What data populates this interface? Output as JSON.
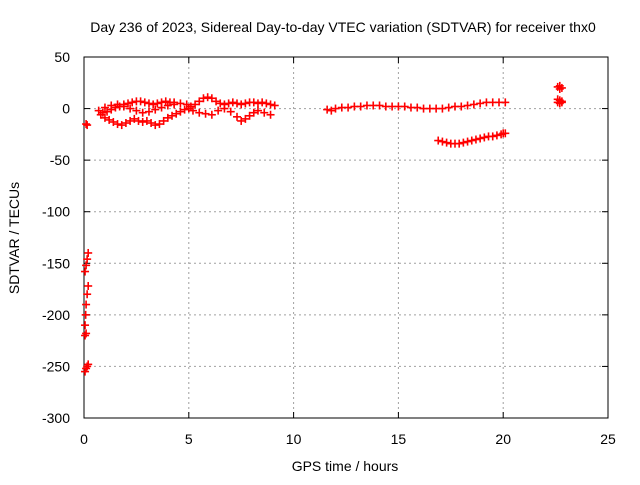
{
  "chart_data": {
    "type": "scatter",
    "title": "Day 236 of 2023, Sidereal Day-to-day VTEC variation (SDTVAR) for receiver thx0",
    "xlabel": "GPS time / hours",
    "ylabel": "SDTVAR / TECUs",
    "xlim": [
      0,
      25
    ],
    "ylim": [
      -300,
      50
    ],
    "xticks": [
      "0",
      "5",
      "10",
      "15",
      "20",
      "25"
    ],
    "yticks": [
      "-300",
      "-250",
      "-200",
      "-150",
      "-100",
      "-50",
      "0",
      "50"
    ],
    "grid": true,
    "marker": "plus",
    "colors": {
      "series": "#ff0000",
      "grid": "#a0a0a0",
      "axis": "#000000"
    },
    "series": [
      {
        "points": [
          [
            0.1,
            -15
          ],
          [
            0.15,
            -16
          ],
          [
            0.05,
            -255
          ],
          [
            0.1,
            -252
          ],
          [
            0.15,
            -250
          ],
          [
            0.2,
            -248
          ],
          [
            0.05,
            -220
          ],
          [
            0.1,
            -218
          ],
          [
            0.05,
            -210
          ],
          [
            0.08,
            -200
          ],
          [
            0.1,
            -190
          ],
          [
            0.15,
            -180
          ],
          [
            0.2,
            -172
          ],
          [
            0.05,
            -158
          ],
          [
            0.1,
            -152
          ],
          [
            0.15,
            -146
          ],
          [
            0.2,
            -140
          ],
          [
            0.7,
            -2
          ],
          [
            0.9,
            -4
          ],
          [
            1.1,
            -3
          ],
          [
            1.3,
            -1
          ],
          [
            1.5,
            1
          ],
          [
            1.7,
            2
          ],
          [
            1.9,
            4
          ],
          [
            2.1,
            5
          ],
          [
            2.3,
            6
          ],
          [
            2.5,
            7
          ],
          [
            2.7,
            7
          ],
          [
            2.9,
            6
          ],
          [
            3.1,
            5
          ],
          [
            3.3,
            4
          ],
          [
            3.5,
            5
          ],
          [
            3.7,
            6
          ],
          [
            3.9,
            7
          ],
          [
            4.1,
            6
          ],
          [
            4.3,
            6
          ],
          [
            0.8,
            -6
          ],
          [
            1.0,
            -9
          ],
          [
            1.2,
            -11
          ],
          [
            1.4,
            -13
          ],
          [
            1.6,
            -15
          ],
          [
            1.8,
            -16
          ],
          [
            2.0,
            -14
          ],
          [
            2.2,
            -12
          ],
          [
            2.4,
            -10
          ],
          [
            2.6,
            -12
          ],
          [
            2.8,
            -13
          ],
          [
            3.0,
            -12
          ],
          [
            3.2,
            -14
          ],
          [
            3.4,
            -16
          ],
          [
            3.6,
            -15
          ],
          [
            3.8,
            -12
          ],
          [
            4.0,
            -9
          ],
          [
            4.2,
            -7
          ],
          [
            4.4,
            -5
          ],
          [
            4.6,
            -3
          ],
          [
            4.8,
            -1
          ],
          [
            5.0,
            0
          ],
          [
            1.0,
            1
          ],
          [
            1.3,
            3
          ],
          [
            1.6,
            4
          ],
          [
            1.9,
            2
          ],
          [
            2.2,
            0
          ],
          [
            2.5,
            -2
          ],
          [
            2.8,
            -4
          ],
          [
            3.1,
            -3
          ],
          [
            3.4,
            -1
          ],
          [
            3.7,
            1
          ],
          [
            4.0,
            3
          ],
          [
            4.3,
            4
          ],
          [
            4.6,
            5
          ],
          [
            4.9,
            4
          ],
          [
            5.1,
            2
          ],
          [
            5.3,
            4
          ],
          [
            5.5,
            7
          ],
          [
            5.7,
            10
          ],
          [
            5.9,
            11
          ],
          [
            6.1,
            10
          ],
          [
            6.3,
            7
          ],
          [
            6.5,
            5
          ],
          [
            6.7,
            4
          ],
          [
            6.9,
            5
          ],
          [
            7.1,
            6
          ],
          [
            7.3,
            5
          ],
          [
            7.5,
            4
          ],
          [
            7.7,
            5
          ],
          [
            7.9,
            6
          ],
          [
            8.1,
            6
          ],
          [
            8.3,
            5
          ],
          [
            8.5,
            6
          ],
          [
            8.7,
            5
          ],
          [
            8.9,
            4
          ],
          [
            9.1,
            3
          ],
          [
            5.2,
            -2
          ],
          [
            5.5,
            -4
          ],
          [
            5.8,
            -5
          ],
          [
            6.1,
            -6
          ],
          [
            6.4,
            -2
          ],
          [
            6.7,
            0
          ],
          [
            7.0,
            -3
          ],
          [
            7.3,
            -8
          ],
          [
            7.5,
            -12
          ],
          [
            7.7,
            -10
          ],
          [
            7.9,
            -7
          ],
          [
            8.1,
            -4
          ],
          [
            8.3,
            -2
          ],
          [
            8.6,
            -4
          ],
          [
            8.9,
            -6
          ],
          [
            11.6,
            -1
          ],
          [
            11.8,
            -2
          ],
          [
            12.0,
            0
          ],
          [
            12.3,
            1
          ],
          [
            12.6,
            1
          ],
          [
            12.9,
            2
          ],
          [
            13.2,
            2
          ],
          [
            13.5,
            3
          ],
          [
            13.8,
            3
          ],
          [
            14.1,
            3
          ],
          [
            14.4,
            2
          ],
          [
            14.7,
            2
          ],
          [
            15.0,
            2
          ],
          [
            15.3,
            2
          ],
          [
            15.6,
            1
          ],
          [
            15.9,
            1
          ],
          [
            16.2,
            0
          ],
          [
            16.5,
            0
          ],
          [
            16.8,
            0
          ],
          [
            17.1,
            0
          ],
          [
            17.4,
            1
          ],
          [
            17.7,
            2
          ],
          [
            18.0,
            2
          ],
          [
            18.3,
            3
          ],
          [
            18.6,
            4
          ],
          [
            18.9,
            5
          ],
          [
            19.2,
            6
          ],
          [
            19.5,
            6
          ],
          [
            19.8,
            6
          ],
          [
            20.1,
            6
          ],
          [
            16.9,
            -31
          ],
          [
            17.1,
            -32
          ],
          [
            17.3,
            -33
          ],
          [
            17.5,
            -34
          ],
          [
            17.7,
            -34
          ],
          [
            17.9,
            -34
          ],
          [
            18.1,
            -33
          ],
          [
            18.3,
            -32
          ],
          [
            18.5,
            -31
          ],
          [
            18.7,
            -30
          ],
          [
            18.9,
            -29
          ],
          [
            19.1,
            -28
          ],
          [
            19.3,
            -27
          ],
          [
            19.5,
            -27
          ],
          [
            19.7,
            -26
          ],
          [
            19.9,
            -25
          ],
          [
            20.0,
            -24
          ],
          [
            20.1,
            -24
          ],
          [
            22.6,
            21
          ],
          [
            22.7,
            22
          ],
          [
            22.8,
            20
          ],
          [
            22.7,
            19
          ],
          [
            22.6,
            9
          ],
          [
            22.7,
            8
          ],
          [
            22.8,
            6
          ],
          [
            22.6,
            6
          ],
          [
            22.7,
            5
          ],
          [
            22.8,
            7
          ]
        ]
      }
    ]
  }
}
